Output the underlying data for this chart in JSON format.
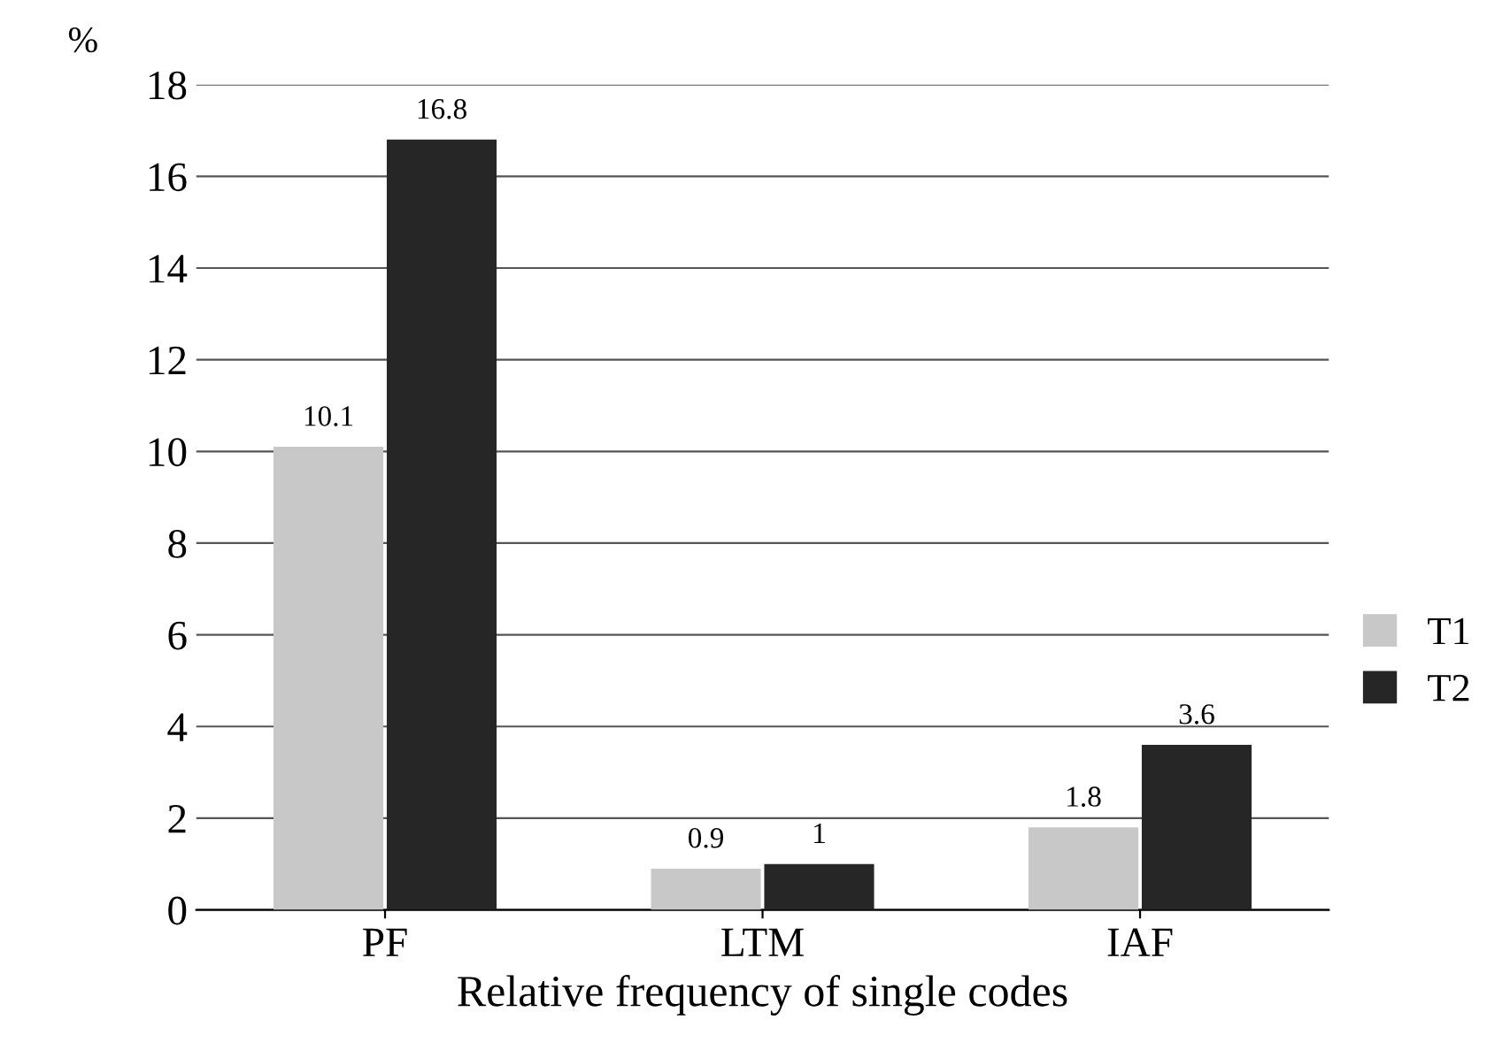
{
  "chart_data": {
    "type": "bar",
    "xlabel": "Relative frequency of single codes",
    "ylabel": "%",
    "categories": [
      "PF",
      "LTM",
      "IAF"
    ],
    "series": [
      {
        "name": "T1",
        "color": "#c8c8c8",
        "values": [
          10.1,
          0.9,
          1.8
        ]
      },
      {
        "name": "T2",
        "color": "#262626",
        "values": [
          16.8,
          1,
          3.6
        ]
      }
    ],
    "ylim": [
      0,
      18
    ],
    "yticks": [
      0,
      2,
      4,
      6,
      8,
      10,
      12,
      14,
      16,
      18
    ],
    "grid": "y",
    "legend": "right",
    "data_labels": true
  }
}
